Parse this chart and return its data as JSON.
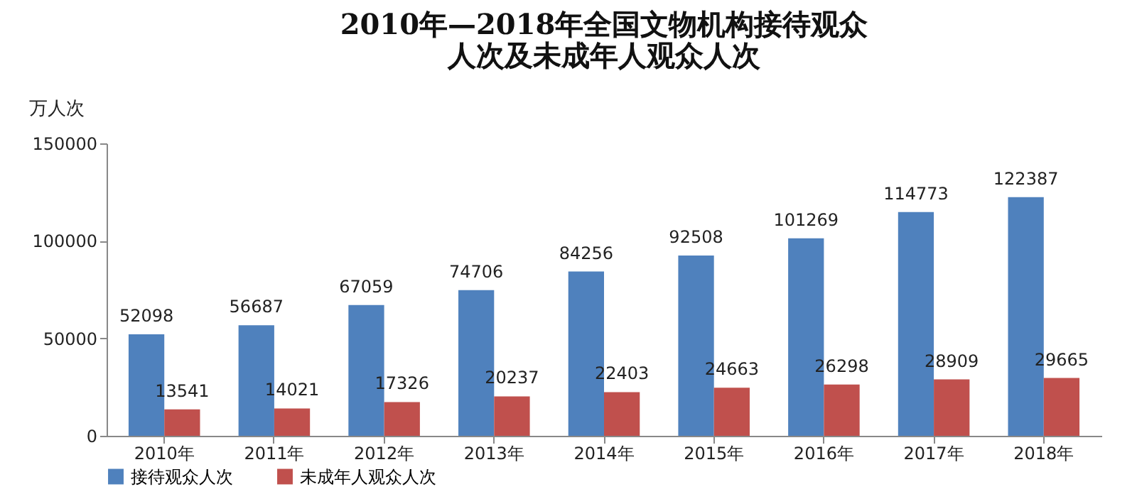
{
  "chart_data": {
    "type": "bar",
    "title": "2010年—2018年全国文物机构接待观众人次及未成年人观众人次",
    "ylabel": "万人次",
    "categories": [
      "2010年",
      "2011年",
      "2012年",
      "2013年",
      "2014年",
      "2015年",
      "2016年",
      "2017年",
      "2018年"
    ],
    "series": [
      {
        "name": "接待观众人次",
        "color": "#4f81bd",
        "values": [
          52098,
          56687,
          67059,
          74706,
          84256,
          92508,
          101269,
          114773,
          122387
        ]
      },
      {
        "name": "未成年人观众人次",
        "color": "#c0504d",
        "values": [
          13541,
          14021,
          17326,
          20237,
          22403,
          24663,
          26298,
          28909,
          29665
        ]
      }
    ],
    "ylim": [
      0,
      150000
    ],
    "yticks": [
      0,
      50000,
      100000,
      150000
    ],
    "grid": false,
    "legend": "bottom",
    "data_labels": true
  }
}
